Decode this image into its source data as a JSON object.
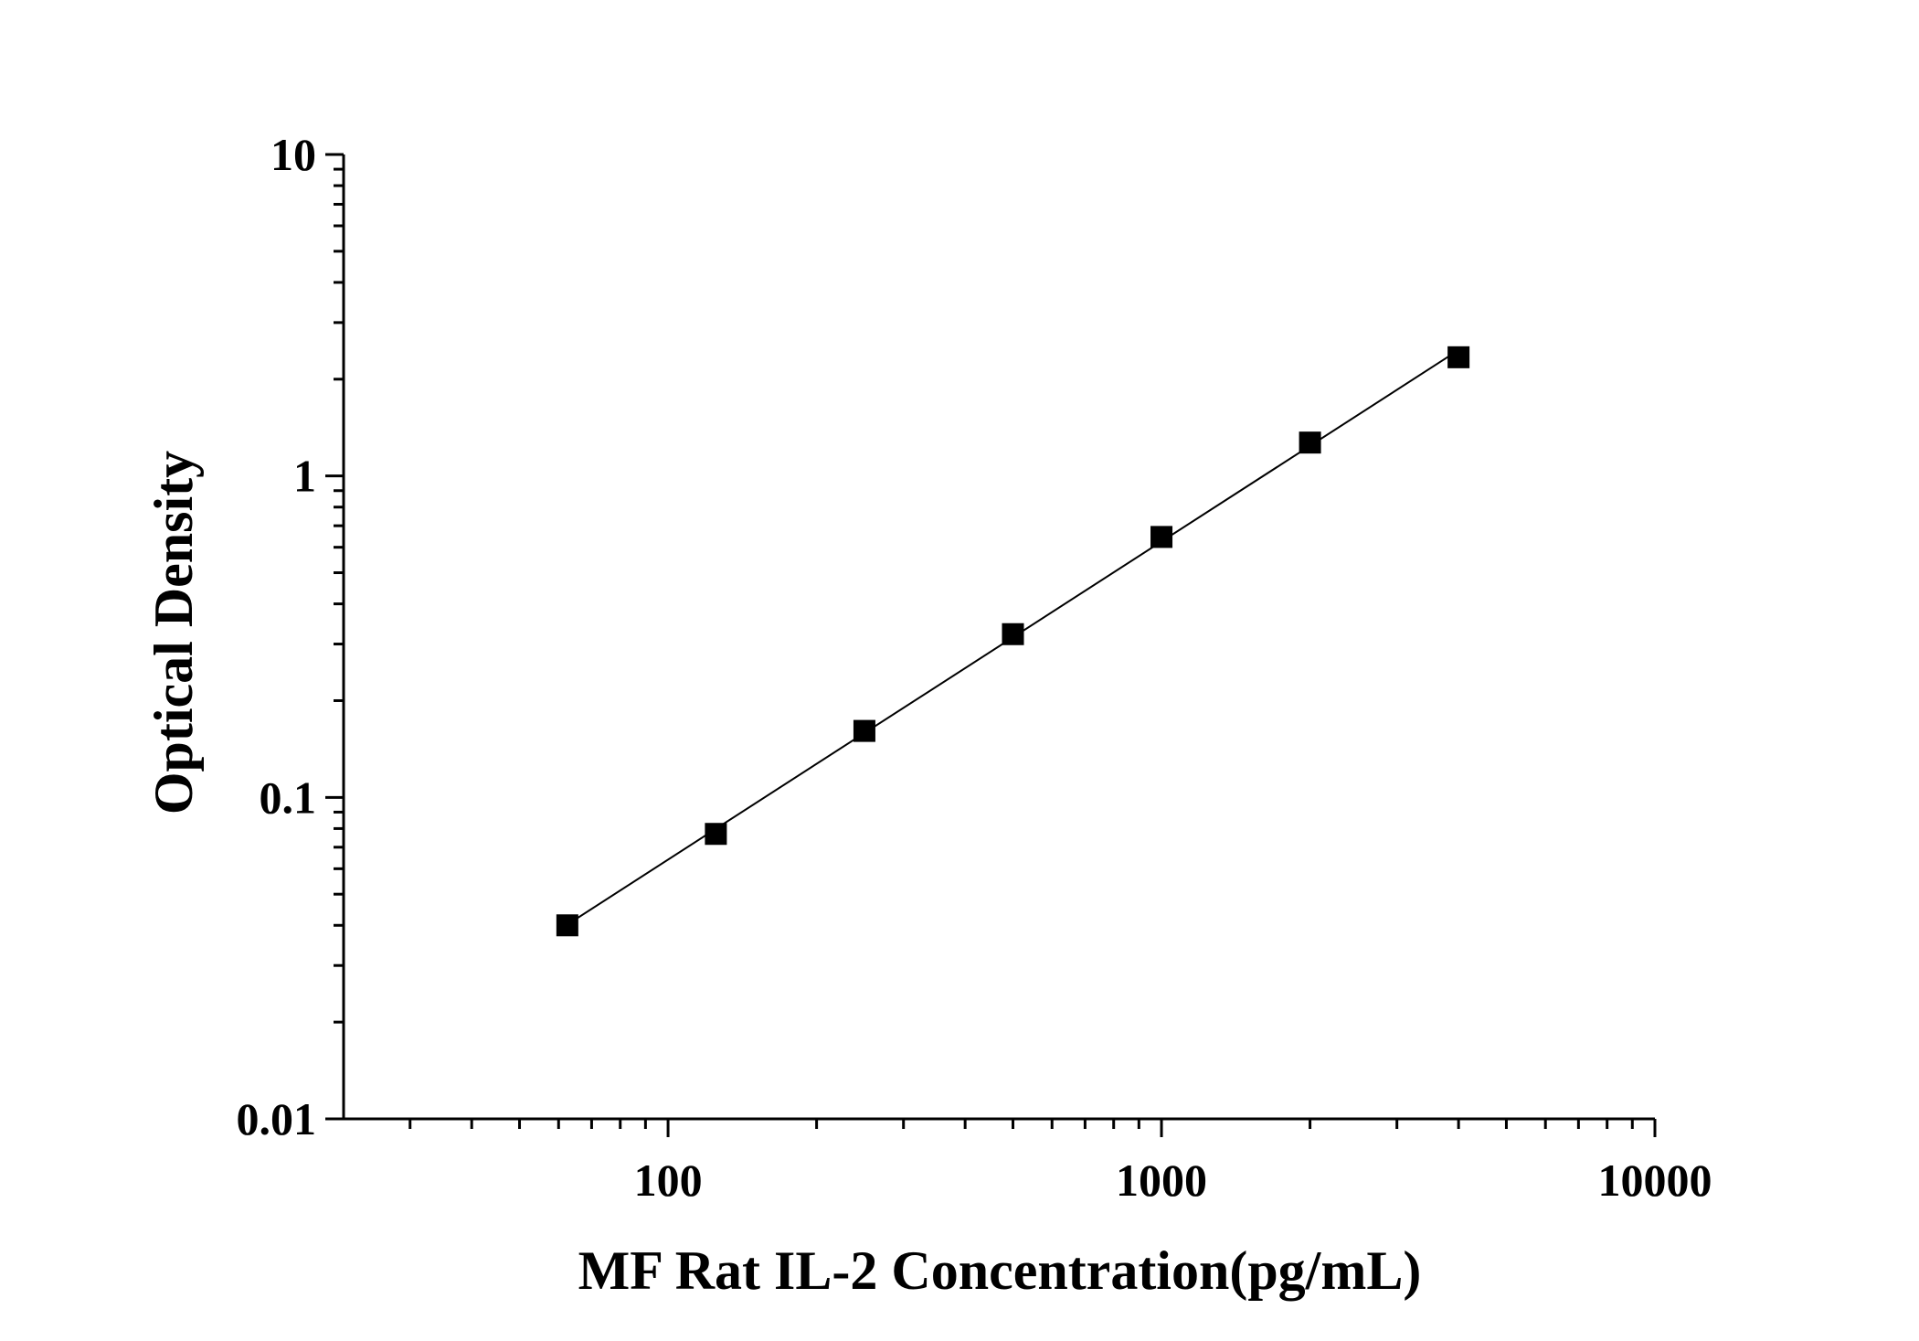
{
  "chart_data": {
    "type": "scatter",
    "xlabel": "MF Rat IL-2 Concentration(pg/mL)",
    "ylabel": "Optical Density",
    "x_scale": "log",
    "y_scale": "log",
    "xlim": [
      22,
      10000
    ],
    "ylim": [
      0.01,
      10
    ],
    "x_tick_labels": [
      "100",
      "1000",
      "10000"
    ],
    "y_tick_labels": [
      "0.01",
      "0.1",
      "1",
      "10"
    ],
    "grid": false,
    "legend": "none",
    "series": [
      {
        "x": [
          62.5,
          125,
          250,
          500,
          1000,
          2000,
          4000
        ],
        "y": [
          0.04,
          0.077,
          0.161,
          0.322,
          0.646,
          1.27,
          2.34
        ],
        "marker": "square",
        "color": "#000000",
        "line": "fit"
      }
    ]
  }
}
